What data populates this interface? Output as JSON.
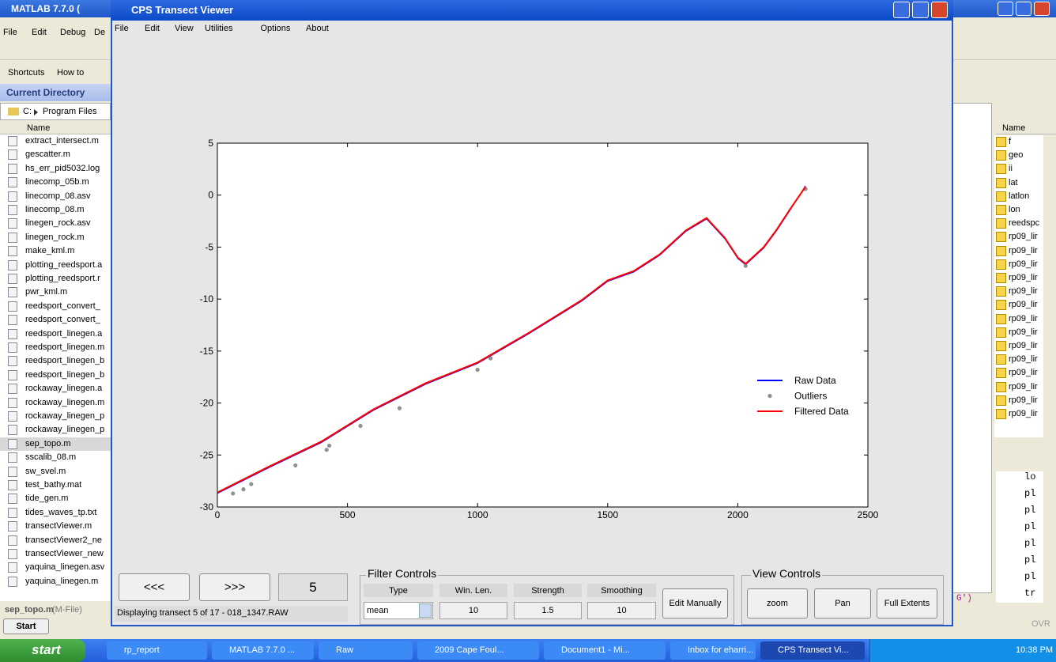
{
  "matlab": {
    "title": "MATLAB 7.7.0 (",
    "menu": [
      "File",
      "Edit",
      "Debug",
      "De"
    ],
    "shortcuts": "Shortcuts",
    "how_to": "How to",
    "current_directory": "Current Directory",
    "path_drive": "C:",
    "path_folder": "Program Files",
    "name_header": "Name",
    "files": [
      "extract_intersect.m",
      "gescatter.m",
      "hs_err_pid5032.log",
      "linecomp_05b.m",
      "linecomp_08.asv",
      "linecomp_08.m",
      "linegen_rock.asv",
      "linegen_rock.m",
      "make_kml.m",
      "plotting_reedsport.a",
      "plotting_reedsport.r",
      "pwr_kml.m",
      "reedsport_convert_",
      "reedsport_convert_",
      "reedsport_linegen.a",
      "reedsport_linegen.m",
      "reedsport_linegen_b",
      "reedsport_linegen_b",
      "rockaway_linegen.a",
      "rockaway_linegen.m",
      "rockaway_linegen_p",
      "rockaway_linegen_p",
      "sep_topo.m",
      "sscalib_08.m",
      "sw_svel.m",
      "test_bathy.mat",
      "tide_gen.m",
      "tides_waves_tp.txt",
      "transectViewer.m",
      "transectViewer2_ne",
      "transectViewer_new",
      "yaquina_linegen.asv",
      "yaquina_linegen.m"
    ],
    "status_file": "sep_topo.m",
    "status_type": "(M-File)",
    "start": "Start",
    "command_fragment": "G')",
    "workspace_header": "Name",
    "variables": [
      "f",
      "geo",
      "ii",
      "lat",
      "latlon",
      "lon",
      "reedspc",
      "rp09_lir",
      "rp09_lir",
      "rp09_lir",
      "rp09_lir",
      "rp09_lir",
      "rp09_lir",
      "rp09_lir",
      "rp09_lir",
      "rp09_lir",
      "rp09_lir",
      "rp09_lir",
      "rp09_lir",
      "rp09_lir",
      "rp09_lir"
    ],
    "history": [
      "lo",
      "pl",
      "pl",
      "pl",
      "pl",
      "pl",
      "pl",
      "tr"
    ],
    "ovr": "OVR"
  },
  "window": {
    "title": "CPS Transect Viewer",
    "menu": [
      "File",
      "Edit",
      "View",
      "Utilities",
      "Options",
      "About"
    ]
  },
  "chart_data": {
    "type": "line",
    "xlim": [
      0,
      2500
    ],
    "ylim": [
      -30,
      5
    ],
    "xticks": [
      0,
      500,
      1000,
      1500,
      2000,
      2500
    ],
    "yticks": [
      5,
      0,
      -5,
      -10,
      -15,
      -20,
      -25,
      -30
    ],
    "grid": false,
    "legend": "right",
    "series": [
      {
        "name": "Raw Data",
        "color": "#0000ff",
        "mode": "line",
        "x": [
          0,
          200,
          400,
          600,
          800,
          1000,
          1200,
          1400,
          1500,
          1600,
          1700,
          1800,
          1880,
          1950,
          2000,
          2030,
          2100,
          2150,
          2200,
          2260
        ],
        "values": [
          -28.7,
          -26.2,
          -23.8,
          -20.7,
          -18.2,
          -16.2,
          -13.3,
          -10.2,
          -8.3,
          -7.4,
          -5.8,
          -3.5,
          -2.3,
          -4.2,
          -6.1,
          -6.7,
          -5.1,
          -3.4,
          -1.5,
          0.9
        ]
      },
      {
        "name": "Outliers",
        "color": "#909090",
        "mode": "markers",
        "x": [
          60,
          100,
          130,
          300,
          420,
          430,
          550,
          700,
          1000,
          1050,
          2030,
          2260
        ],
        "values": [
          -28.7,
          -28.3,
          -27.8,
          -26.0,
          -24.5,
          -24.1,
          -22.2,
          -20.5,
          -16.8,
          -15.7,
          -6.8,
          0.6
        ]
      },
      {
        "name": "Filtered Data",
        "color": "#ff0000",
        "mode": "line",
        "x": [
          0,
          200,
          400,
          600,
          800,
          1000,
          1200,
          1400,
          1500,
          1600,
          1700,
          1800,
          1880,
          1950,
          2000,
          2030,
          2100,
          2150,
          2200,
          2260
        ],
        "values": [
          -28.6,
          -26.1,
          -23.7,
          -20.6,
          -18.1,
          -16.1,
          -13.2,
          -10.1,
          -8.2,
          -7.3,
          -5.7,
          -3.4,
          -2.2,
          -4.1,
          -6.0,
          -6.6,
          -5.0,
          -3.3,
          -1.4,
          0.8
        ]
      }
    ]
  },
  "controls": {
    "prev": "<<<",
    "next": ">>>",
    "transect_number": "5",
    "status": "Displaying transect 5 of 17 - 018_1347.RAW",
    "filter_title": "Filter Controls",
    "filter_headers": [
      "Type",
      "Win. Len.",
      "Strength",
      "Smoothing"
    ],
    "filter_values": [
      "mean",
      "10",
      "1.5",
      "10"
    ],
    "edit_manually": "Edit Manually",
    "view_title": "View Controls",
    "zoom": "zoom",
    "pan": "Pan",
    "full_extents": "Full Extents"
  },
  "taskbar": {
    "start": "start",
    "items": [
      "rp_report",
      "MATLAB 7.7.0 ...",
      "Raw",
      "2009 Cape Foul...",
      "Document1 - Mi...",
      "Inbox for eharri...",
      "CPS Transect Vi..."
    ],
    "clock": "10:38 PM"
  }
}
